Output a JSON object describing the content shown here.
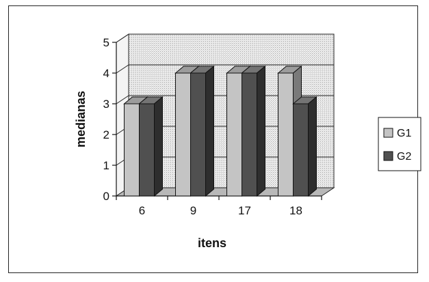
{
  "chart_data": {
    "type": "bar",
    "categories": [
      "6",
      "9",
      "17",
      "18"
    ],
    "series": [
      {
        "name": "G1",
        "values": [
          3,
          4,
          4,
          4
        ]
      },
      {
        "name": "G2",
        "values": [
          3,
          4,
          4,
          3
        ]
      }
    ],
    "xlabel": "itens",
    "ylabel": "medianas",
    "ylim": [
      0,
      5
    ],
    "yticks": [
      "0",
      "1",
      "2",
      "3",
      "4",
      "5"
    ],
    "grid": true,
    "legend_position": "right",
    "three_d": true,
    "colors": {
      "G1_front": "#c4c4c4",
      "G1_top": "#9c9c9c",
      "G1_side": "#7a7a7a",
      "G2_front": "#505050",
      "G2_top": "#747474",
      "G2_side": "#2e2e2e",
      "plot_wall": "#e6e6e6",
      "floor": "#b8b8b8"
    }
  }
}
